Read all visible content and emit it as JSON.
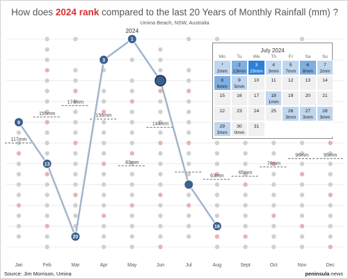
{
  "header": {
    "title_pre": "How does ",
    "title_highlight": "2024 rank",
    "title_post": " compared to the last 20 Years of Monthly Rainfall (mm) ?",
    "subtitle": "Umina Beach, NSW, Australia"
  },
  "footer": {
    "source_prefix": "Source: ",
    "source_name": "Jim Morrison, Umina",
    "brand_bold": "peninsula",
    "brand_italic": " news"
  },
  "colors": {
    "line": "#9fb4cc",
    "rank_marker": "#3b5f8e",
    "history_dot": "#d0d0d0",
    "history_dot_2024": "#e8b3b3",
    "dashed": "#666666",
    "highlight": "#d32f2f",
    "calendar_light": "#bfd6ee",
    "calendar_medium": "#7faee0",
    "calendar_dark": "#2f7fd8"
  },
  "chart_data": {
    "type": "line",
    "title": "How does 2024 rank compared to the last 20 Years of Monthly Rainfall (mm) ?",
    "subtitle": "Umina Beach, NSW, Australia",
    "categories": [
      "Jan",
      "Feb",
      "Mar",
      "Apr",
      "May",
      "Jun",
      "Jul",
      "Aug",
      "Sept",
      "Oct",
      "Nov",
      "Dec"
    ],
    "y_axis": "rank (1 = wettest of 21 years), inverted",
    "ylim": [
      21,
      1
    ],
    "grid": "horizontal",
    "series": [
      {
        "name": "2024 rank",
        "values": [
          9,
          13,
          20,
          3,
          1,
          5,
          15,
          19,
          null,
          null,
          null,
          null
        ]
      }
    ],
    "rank_labels": [
      "9",
      "13",
      "20",
      "3",
      "1",
      "",
      "",
      "19",
      "",
      "",
      "",
      ""
    ],
    "year_label": {
      "text": "2024",
      "month": "May"
    },
    "average_lines": [
      {
        "month": "Jan",
        "label": "117mm",
        "rank": 11
      },
      {
        "month": "Feb",
        "label": "155mm",
        "rank": 8.5
      },
      {
        "month": "Mar",
        "label": "174mm",
        "rank": 7.4
      },
      {
        "month": "Apr",
        "label": "156mm",
        "rank": 8.7
      },
      {
        "month": "May",
        "label": "83mm",
        "rank": 13.2
      },
      {
        "month": "Jun",
        "label": "144mm",
        "rank": 9.5
      },
      {
        "month": "Jul",
        "label": "",
        "rank": 13.8
      },
      {
        "month": "Aug",
        "label": "63mm",
        "rank": 14.5
      },
      {
        "month": "Sept",
        "label": "65mm",
        "rank": 14.2
      },
      {
        "month": "Oct",
        "label": "78mm",
        "rank": 13.3
      },
      {
        "month": "Nov",
        "label": "96mm",
        "rank": 12.5
      },
      {
        "month": "Dec",
        "label": "95mm",
        "rank": 12.5
      }
    ],
    "history_ranks": [
      [
        9,
        10,
        11,
        12,
        13,
        14,
        15,
        16,
        17,
        18,
        19,
        20
      ],
      [
        1,
        2,
        3,
        4,
        5,
        6,
        7,
        8,
        9,
        10,
        11,
        12,
        13,
        14,
        15,
        16,
        17,
        18,
        19,
        20,
        21
      ],
      [
        1,
        4,
        5,
        6,
        7,
        8,
        9,
        10,
        11,
        12,
        13,
        14,
        15,
        16,
        17,
        18,
        19,
        20
      ],
      [
        4,
        6,
        7,
        8,
        9,
        10,
        11,
        12,
        13,
        14,
        15,
        16,
        17,
        18,
        19,
        20,
        21
      ],
      [
        3,
        5,
        6,
        7,
        8,
        9,
        10,
        11,
        12,
        13,
        14,
        15,
        16,
        17,
        18,
        19,
        20,
        21
      ],
      [
        2,
        3,
        4,
        6,
        7,
        8,
        9,
        10,
        11,
        12,
        13,
        14,
        15,
        16,
        17,
        18,
        19,
        20,
        21
      ],
      [
        1,
        4,
        5,
        6,
        7,
        8,
        9,
        10,
        11,
        12,
        13,
        14,
        16,
        17,
        18,
        19,
        20
      ],
      [
        1,
        2,
        3,
        4,
        5,
        6,
        7,
        8,
        9,
        10,
        11,
        12,
        13,
        14,
        15,
        16,
        17,
        18,
        20,
        21
      ],
      [
        2,
        3,
        4,
        5,
        6,
        7,
        8,
        9,
        10,
        11,
        12,
        13,
        14,
        15,
        16,
        17,
        18,
        19,
        20,
        21
      ],
      [
        5,
        6,
        7,
        8,
        9,
        10,
        11,
        12,
        13,
        14,
        15,
        16,
        17,
        18,
        19,
        20,
        21
      ],
      [
        1,
        2,
        3,
        4,
        5,
        6,
        7,
        8,
        9,
        10,
        11,
        12,
        13,
        14,
        15,
        16,
        17,
        18,
        19,
        20,
        21
      ],
      [
        3,
        4,
        5,
        6,
        7,
        8,
        9,
        10,
        11,
        12,
        13,
        14,
        15,
        16,
        17,
        18,
        19,
        20,
        21
      ]
    ]
  },
  "calendar": {
    "title": "July 2024",
    "weekdays": [
      "Mo",
      "Tu",
      "We",
      "Th",
      "Fr",
      "Sa",
      "Su"
    ],
    "days": [
      {
        "day": "*",
        "value": "2mm",
        "level": "light"
      },
      {
        "day": "2",
        "value": "13mm",
        "level": "med"
      },
      {
        "day": "3",
        "value": "29mm",
        "level": "dark"
      },
      {
        "day": "4",
        "value": "3mm",
        "level": "light"
      },
      {
        "day": "5",
        "value": "7mm",
        "level": "light"
      },
      {
        "day": "6",
        "value": "8mm",
        "level": "med"
      },
      {
        "day": "7",
        "value": "2mm",
        "level": "light"
      },
      {
        "day": "8",
        "value": "6mm",
        "level": "med"
      },
      {
        "day": "9",
        "value": "5mm",
        "level": "light"
      },
      {
        "day": "10",
        "value": "",
        "level": "none"
      },
      {
        "day": "11",
        "value": "",
        "level": "none"
      },
      {
        "day": "12",
        "value": "",
        "level": "none"
      },
      {
        "day": "13",
        "value": "",
        "level": "none"
      },
      {
        "day": "14",
        "value": "",
        "level": "none"
      },
      {
        "day": "15",
        "value": "",
        "level": "none"
      },
      {
        "day": "16",
        "value": "",
        "level": "none"
      },
      {
        "day": "17",
        "value": "",
        "level": "none"
      },
      {
        "day": "18",
        "value": "1mm",
        "level": "light"
      },
      {
        "day": "19",
        "value": "",
        "level": "none"
      },
      {
        "day": "20",
        "value": "",
        "level": "none"
      },
      {
        "day": "21",
        "value": "",
        "level": "none"
      },
      {
        "day": "22",
        "value": "",
        "level": "none"
      },
      {
        "day": "23",
        "value": "",
        "level": "none"
      },
      {
        "day": "24",
        "value": "",
        "level": "none"
      },
      {
        "day": "25",
        "value": "",
        "level": "none"
      },
      {
        "day": "26",
        "value": "3mm",
        "level": "light"
      },
      {
        "day": "27",
        "value": "3mm",
        "level": "light"
      },
      {
        "day": "28",
        "value": "3mm",
        "level": "light"
      },
      {
        "day": "29",
        "value": "3mm",
        "level": "light"
      },
      {
        "day": "30",
        "value": "0mm",
        "level": "none"
      },
      {
        "day": "31",
        "value": "",
        "level": "none"
      }
    ]
  }
}
